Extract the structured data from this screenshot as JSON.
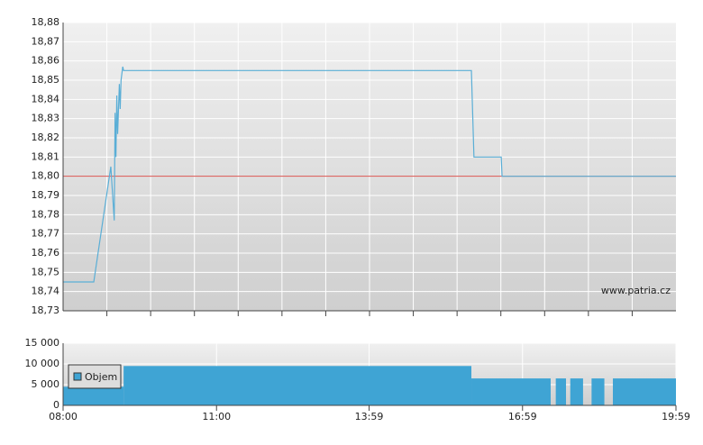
{
  "chart_data": [
    {
      "type": "line",
      "xlim": [
        "08:00",
        "19:59"
      ],
      "ylim": [
        18.73,
        18.88
      ],
      "yticks": [
        {
          "value": 18.73,
          "label": "18,73"
        },
        {
          "value": 18.74,
          "label": "18,74"
        },
        {
          "value": 18.75,
          "label": "18,75"
        },
        {
          "value": 18.76,
          "label": "18,76"
        },
        {
          "value": 18.77,
          "label": "18,77"
        },
        {
          "value": 18.78,
          "label": "18,78"
        },
        {
          "value": 18.79,
          "label": "18,79"
        },
        {
          "value": 18.8,
          "label": "18,80"
        },
        {
          "value": 18.81,
          "label": "18,81"
        },
        {
          "value": 18.82,
          "label": "18,82"
        },
        {
          "value": 18.83,
          "label": "18,83"
        },
        {
          "value": 18.84,
          "label": "18,84"
        },
        {
          "value": 18.85,
          "label": "18,85"
        },
        {
          "value": 18.86,
          "label": "18,86"
        },
        {
          "value": 18.87,
          "label": "18,87"
        },
        {
          "value": 18.88,
          "label": "18,88"
        }
      ],
      "grid": true,
      "reference": {
        "value": 18.8,
        "color": "#d9534f"
      },
      "watermark": "www.patria.cz",
      "series": [
        {
          "color": "#5aaed6",
          "x": [
            "08:00",
            "08:36",
            "08:56",
            "09:00",
            "09:01",
            "09:02",
            "09:03",
            "09:04",
            "09:06",
            "09:07",
            "09:08",
            "09:10",
            "09:11",
            "15:59",
            "16:02",
            "16:34",
            "16:35",
            "19:59"
          ],
          "values": [
            18.745,
            18.745,
            18.805,
            18.777,
            18.833,
            18.81,
            18.842,
            18.822,
            18.848,
            18.835,
            18.85,
            18.857,
            18.855,
            18.855,
            18.81,
            18.81,
            18.8,
            18.8
          ]
        }
      ]
    },
    {
      "type": "bar",
      "xlim": [
        "08:00",
        "19:59"
      ],
      "xticks": [
        "08:00",
        "11:00",
        "13:59",
        "16:59",
        "19:59"
      ],
      "ylim": [
        0,
        15000
      ],
      "yticks": [
        0,
        {
          "value": 5000,
          "label": "5 000"
        },
        {
          "value": 10000,
          "label": "10 000"
        },
        {
          "value": 15000,
          "label": "15 000"
        }
      ],
      "grid": true,
      "legend": "top-left",
      "series": [
        {
          "name": "Objem",
          "color": "#3fa4d4",
          "x": [
            "08:00",
            "09:11",
            "15:59",
            "17:32",
            "17:38",
            "17:50",
            "17:55",
            "18:10",
            "18:20",
            "18:35",
            "18:45"
          ],
          "values": [
            4500,
            9500,
            6500,
            0,
            6500,
            0,
            6500,
            0,
            6500,
            0,
            6500
          ]
        }
      ]
    }
  ]
}
